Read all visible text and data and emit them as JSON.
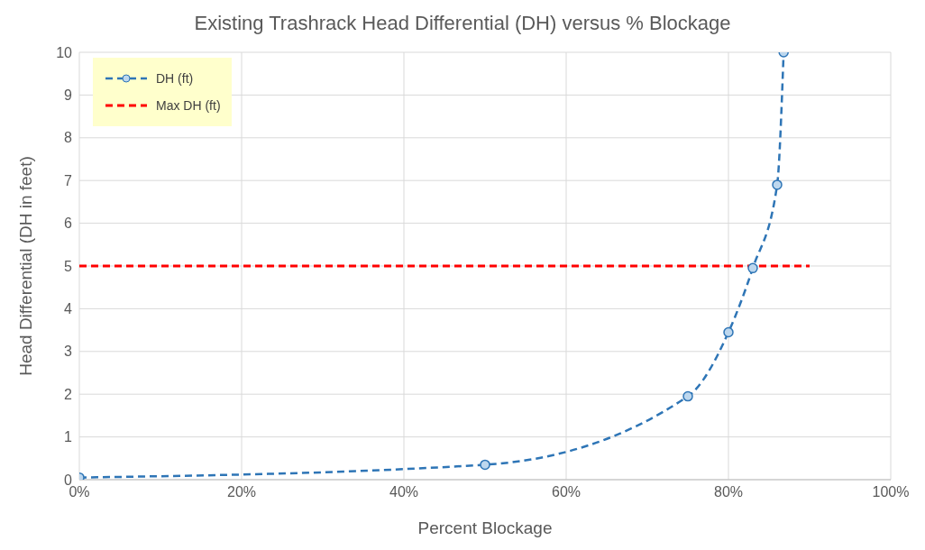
{
  "chart_data": {
    "type": "line",
    "title": "Existing Trashrack Head Differential (DH) versus % Blockage",
    "xlabel": "Percent Blockage",
    "ylabel": "Head Differential (DH in feet)",
    "xlim": [
      0,
      100
    ],
    "xticks": [
      {
        "value": 0,
        "label": "0%"
      },
      {
        "value": 20,
        "label": "20%"
      },
      {
        "value": 40,
        "label": "40%"
      },
      {
        "value": 60,
        "label": "60%"
      },
      {
        "value": 80,
        "label": "80%"
      },
      {
        "value": 100,
        "label": "100%"
      }
    ],
    "ylim": [
      0,
      10
    ],
    "yticks": [
      0,
      1,
      2,
      3,
      4,
      5,
      6,
      7,
      8,
      9,
      10
    ],
    "grid": true,
    "legend": "top left",
    "series": [
      {
        "name": "DH (ft)",
        "color": "#2e75b6",
        "x": [
          0,
          50,
          75,
          80,
          83,
          86,
          86.8
        ],
        "values": [
          0.05,
          0.35,
          1.95,
          3.45,
          4.95,
          6.9,
          10
        ],
        "marker": "circle",
        "line_style": "dashed"
      },
      {
        "name": "Max DH (ft)",
        "color": "#ff0000",
        "x": [
          0,
          90
        ],
        "values": [
          5,
          5
        ],
        "marker": "none",
        "line_style": "dashed"
      }
    ]
  }
}
